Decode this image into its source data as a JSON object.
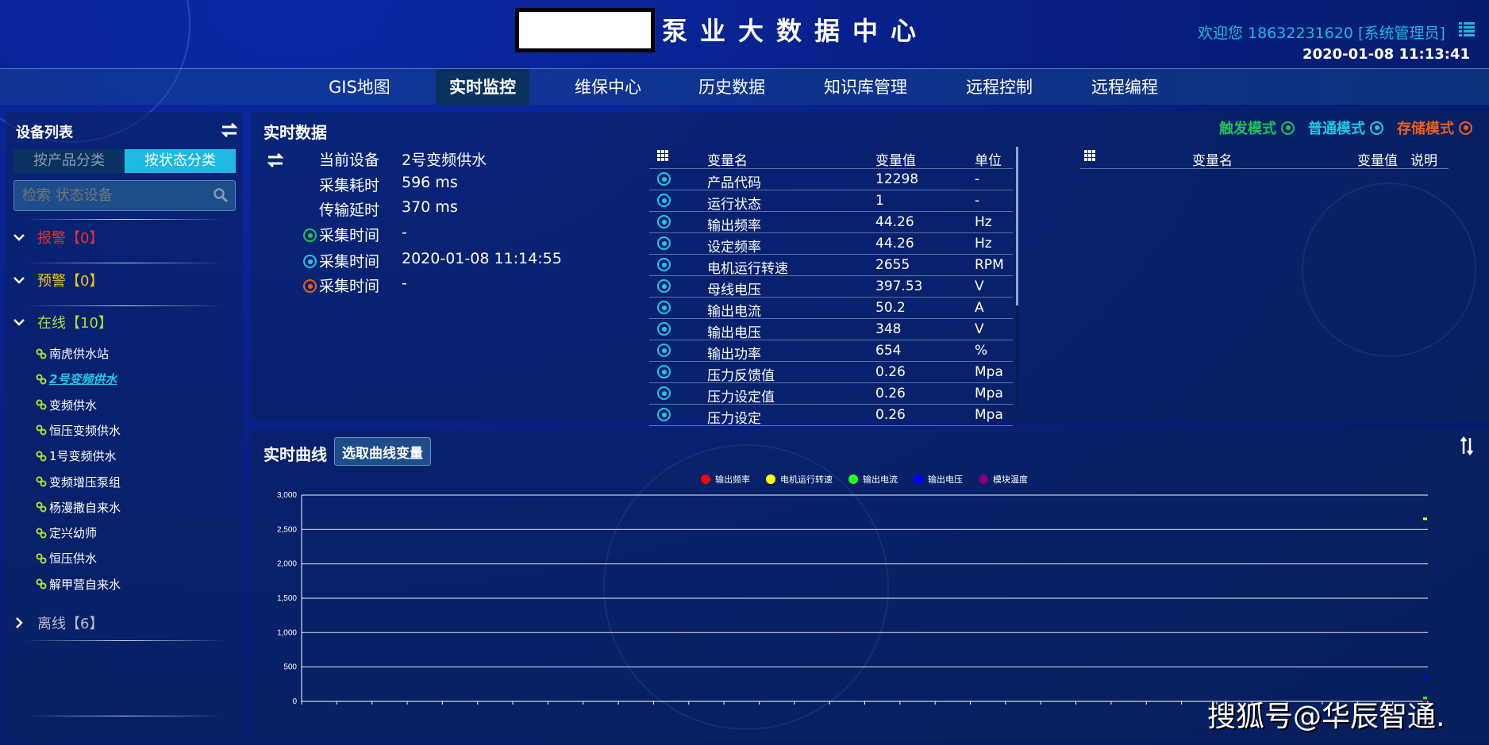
{
  "header": {
    "title": "泵业大数据中心",
    "welcome": "欢迎您  18632231620 [系统管理员]",
    "clock": "2020-01-08 11:13:41"
  },
  "nav": [
    {
      "label": "GIS地图"
    },
    {
      "label": "实时监控",
      "active": true
    },
    {
      "label": "维保中心"
    },
    {
      "label": "历史数据"
    },
    {
      "label": "知识库管理"
    },
    {
      "label": "远程控制"
    },
    {
      "label": "远程编程"
    }
  ],
  "sidebar": {
    "title": "设备列表",
    "tabs": [
      "按产品分类",
      "按状态分类"
    ],
    "search_placeholder": "检索 状态设备",
    "groups": {
      "alarm": "报警【0】",
      "warning": "预警【0】",
      "online": "在线【10】",
      "offline": "离线【6】"
    },
    "devices": [
      "南虎供水站",
      "2号变频供水",
      "变频供水",
      "恒压变频供水",
      "1号变频供水",
      "变频增压泵组",
      "杨漫撒自来水",
      "定兴幼师",
      "恒压供水",
      "解甲营自来水"
    ],
    "selected": "2号变频供水"
  },
  "realtime": {
    "title": "实时数据",
    "info": [
      {
        "label": "当前设备",
        "value": "2号变频供水"
      },
      {
        "label": "采集耗时",
        "value": "596 ms"
      },
      {
        "label": "传输延时",
        "value": "370 ms"
      },
      {
        "label": "采集时间",
        "value": "-",
        "ring": "#1fc25a"
      },
      {
        "label": "采集时间",
        "value": "2020-01-08 11:14:55",
        "ring": "#1fc8e8"
      },
      {
        "label": "采集时间",
        "value": "-",
        "ring": "#e8601c"
      }
    ],
    "modes": [
      {
        "label": "触发模式",
        "color": "#1fc25a"
      },
      {
        "label": "普通模式",
        "color": "#1fc8e8"
      },
      {
        "label": "存储模式",
        "color": "#e8601c"
      }
    ],
    "table_headers": [
      "变量名",
      "变量值",
      "单位"
    ],
    "rows": [
      [
        "产品代码",
        "12298",
        "-"
      ],
      [
        "运行状态",
        "1",
        "-"
      ],
      [
        "输出频率",
        "44.26",
        "Hz"
      ],
      [
        "设定频率",
        "44.26",
        "Hz"
      ],
      [
        "电机运行转速",
        "2655",
        "RPM"
      ],
      [
        "母线电压",
        "397.53",
        "V"
      ],
      [
        "输出电流",
        "50.2",
        "A"
      ],
      [
        "输出电压",
        "348",
        "V"
      ],
      [
        "输出功率",
        "654",
        "%"
      ],
      [
        "压力反馈值",
        "0.26",
        "Mpa"
      ],
      [
        "压力设定值",
        "0.26",
        "Mpa"
      ],
      [
        "压力设定",
        "0.26",
        "Mpa"
      ]
    ],
    "table2_headers": [
      "变量名",
      "变量值",
      "说明"
    ]
  },
  "curve": {
    "title": "实时曲线",
    "pick_button": "选取曲线变量"
  },
  "chart_data": {
    "type": "line",
    "yticks": [
      "0",
      "500",
      "1,000",
      "1,500",
      "2,000",
      "2,500",
      "3,000"
    ],
    "ylim": [
      0,
      3000
    ],
    "grid": true,
    "legend": "top-center",
    "series": [
      {
        "name": "输出频率",
        "color": "#ff0000",
        "values": [
          44.26
        ]
      },
      {
        "name": "电机运行转速",
        "color": "#ffff00",
        "values": [
          2655
        ]
      },
      {
        "name": "输出电流",
        "color": "#22ff22",
        "values": [
          50.2
        ]
      },
      {
        "name": "输出电压",
        "color": "#0000ff",
        "values": [
          348
        ]
      },
      {
        "name": "模块温度",
        "color": "#800080",
        "values": [
          0
        ]
      }
    ]
  },
  "watermark": "搜狐号@华辰智通."
}
